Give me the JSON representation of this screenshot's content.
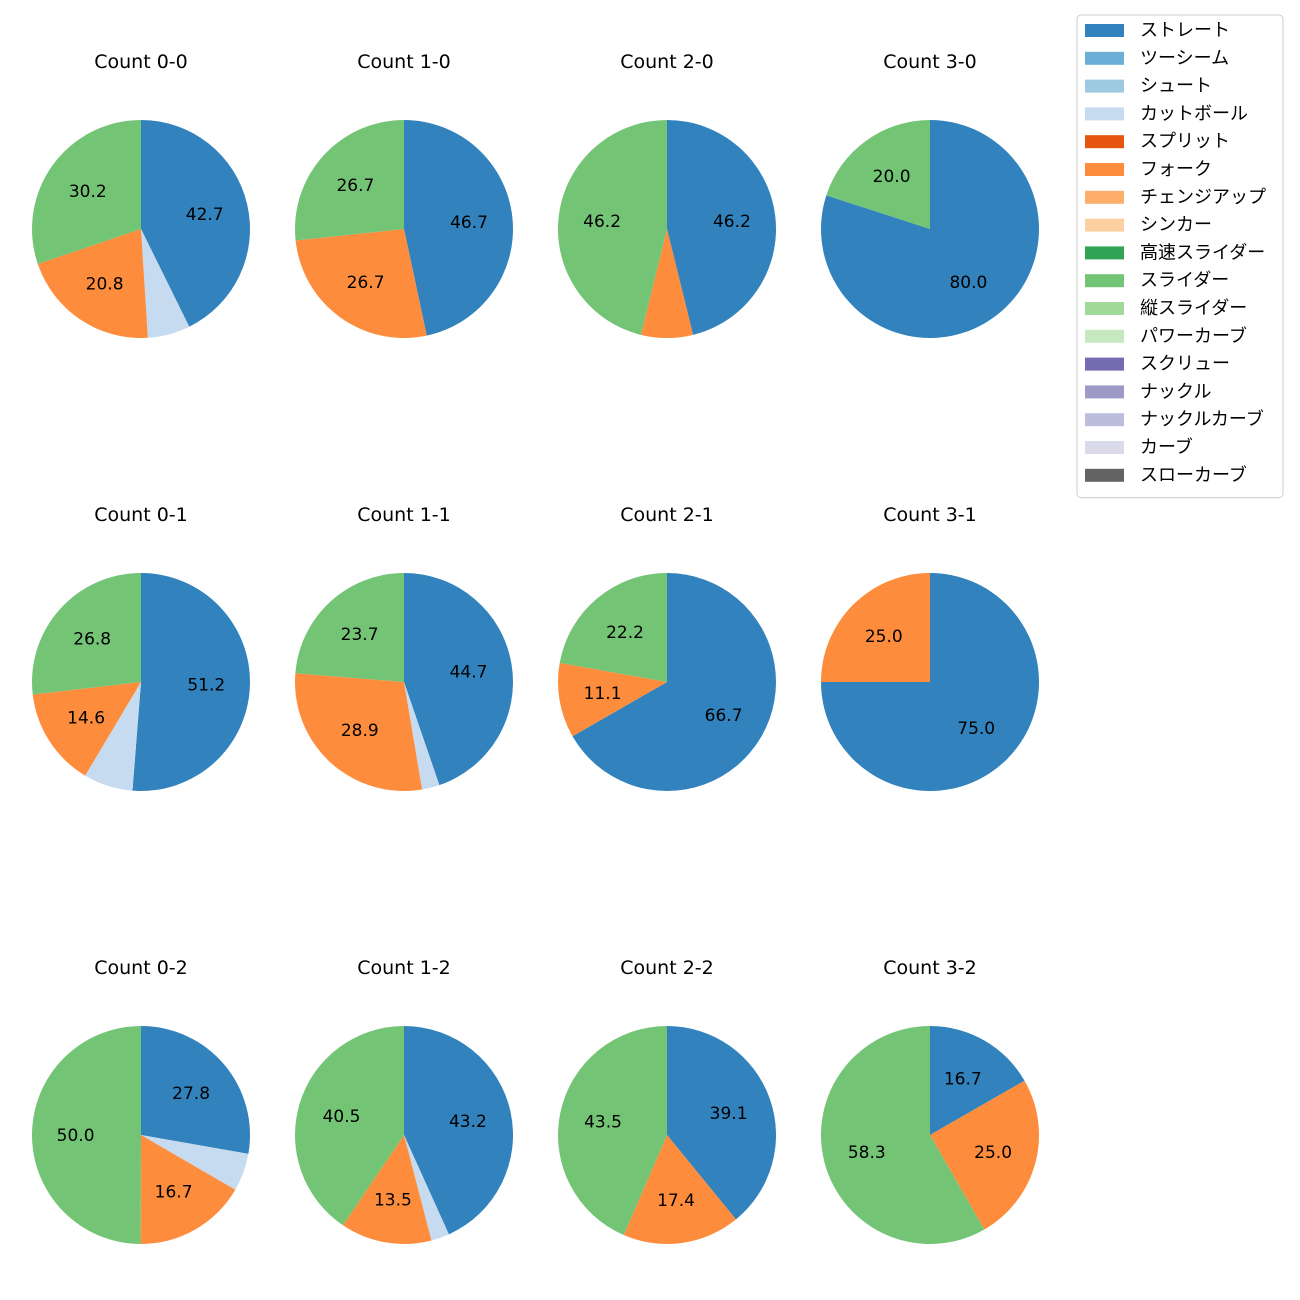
{
  "chart_data": {
    "type": "pie",
    "legend_position": "top-right",
    "pitch_types": [
      {
        "name": "ストレート",
        "color": "#3182bd"
      },
      {
        "name": "ツーシーム",
        "color": "#6baed6"
      },
      {
        "name": "シュート",
        "color": "#9ecae1"
      },
      {
        "name": "カットボール",
        "color": "#c6dbef"
      },
      {
        "name": "スプリット",
        "color": "#e6550d"
      },
      {
        "name": "フォーク",
        "color": "#fd8d3c"
      },
      {
        "name": "チェンジアップ",
        "color": "#fdae6b"
      },
      {
        "name": "シンカー",
        "color": "#fdd0a2"
      },
      {
        "name": "高速スライダー",
        "color": "#31a354"
      },
      {
        "name": "スライダー",
        "color": "#74c476"
      },
      {
        "name": "縦スライダー",
        "color": "#a1d99b"
      },
      {
        "name": "パワーカーブ",
        "color": "#c7e9c0"
      },
      {
        "name": "スクリュー",
        "color": "#756bb1"
      },
      {
        "name": "ナックル",
        "color": "#9e9ac8"
      },
      {
        "name": "ナックルカーブ",
        "color": "#bcbddc"
      },
      {
        "name": "カーブ",
        "color": "#dadaeb"
      },
      {
        "name": "スローカーブ",
        "color": "#636363"
      }
    ],
    "charts": [
      {
        "title": "Count 0-0",
        "slices": [
          {
            "pitch": "ストレート",
            "value": 42.7,
            "label": "42.7"
          },
          {
            "pitch": "カットボール",
            "value": 6.3,
            "label": ""
          },
          {
            "pitch": "フォーク",
            "value": 20.8,
            "label": "20.8"
          },
          {
            "pitch": "スライダー",
            "value": 30.2,
            "label": "30.2"
          }
        ]
      },
      {
        "title": "Count 1-0",
        "slices": [
          {
            "pitch": "ストレート",
            "value": 46.7,
            "label": "46.7"
          },
          {
            "pitch": "フォーク",
            "value": 26.7,
            "label": "26.7"
          },
          {
            "pitch": "スライダー",
            "value": 26.7,
            "label": "26.7"
          }
        ]
      },
      {
        "title": "Count 2-0",
        "slices": [
          {
            "pitch": "ストレート",
            "value": 46.2,
            "label": "46.2"
          },
          {
            "pitch": "フォーク",
            "value": 7.7,
            "label": ""
          },
          {
            "pitch": "スライダー",
            "value": 46.2,
            "label": "46.2"
          }
        ]
      },
      {
        "title": "Count 3-0",
        "slices": [
          {
            "pitch": "ストレート",
            "value": 80.0,
            "label": "80.0"
          },
          {
            "pitch": "スライダー",
            "value": 20.0,
            "label": "20.0"
          }
        ]
      },
      {
        "title": "Count 0-1",
        "slices": [
          {
            "pitch": "ストレート",
            "value": 51.2,
            "label": "51.2"
          },
          {
            "pitch": "カットボール",
            "value": 7.3,
            "label": ""
          },
          {
            "pitch": "フォーク",
            "value": 14.6,
            "label": "14.6"
          },
          {
            "pitch": "スライダー",
            "value": 26.8,
            "label": "26.8"
          }
        ]
      },
      {
        "title": "Count 1-1",
        "slices": [
          {
            "pitch": "ストレート",
            "value": 44.7,
            "label": "44.7"
          },
          {
            "pitch": "カットボール",
            "value": 2.6,
            "label": ""
          },
          {
            "pitch": "フォーク",
            "value": 28.9,
            "label": "28.9"
          },
          {
            "pitch": "スライダー",
            "value": 23.7,
            "label": "23.7"
          }
        ]
      },
      {
        "title": "Count 2-1",
        "slices": [
          {
            "pitch": "ストレート",
            "value": 66.7,
            "label": "66.7"
          },
          {
            "pitch": "フォーク",
            "value": 11.1,
            "label": "11.1"
          },
          {
            "pitch": "スライダー",
            "value": 22.2,
            "label": "22.2"
          }
        ]
      },
      {
        "title": "Count 3-1",
        "slices": [
          {
            "pitch": "ストレート",
            "value": 75.0,
            "label": "75.0"
          },
          {
            "pitch": "フォーク",
            "value": 25.0,
            "label": "25.0"
          }
        ]
      },
      {
        "title": "Count 0-2",
        "slices": [
          {
            "pitch": "ストレート",
            "value": 27.8,
            "label": "27.8"
          },
          {
            "pitch": "カットボール",
            "value": 5.6,
            "label": ""
          },
          {
            "pitch": "フォーク",
            "value": 16.7,
            "label": "16.7"
          },
          {
            "pitch": "スライダー",
            "value": 50.0,
            "label": "50.0"
          }
        ]
      },
      {
        "title": "Count 1-2",
        "slices": [
          {
            "pitch": "ストレート",
            "value": 43.2,
            "label": "43.2"
          },
          {
            "pitch": "カットボール",
            "value": 2.7,
            "label": ""
          },
          {
            "pitch": "フォーク",
            "value": 13.5,
            "label": "13.5"
          },
          {
            "pitch": "スライダー",
            "value": 40.5,
            "label": "40.5"
          }
        ]
      },
      {
        "title": "Count 2-2",
        "slices": [
          {
            "pitch": "ストレート",
            "value": 39.1,
            "label": "39.1"
          },
          {
            "pitch": "フォーク",
            "value": 17.4,
            "label": "17.4"
          },
          {
            "pitch": "スライダー",
            "value": 43.5,
            "label": "43.5"
          }
        ]
      },
      {
        "title": "Count 3-2",
        "slices": [
          {
            "pitch": "ストレート",
            "value": 16.7,
            "label": "16.7"
          },
          {
            "pitch": "フォーク",
            "value": 25.0,
            "label": "25.0"
          },
          {
            "pitch": "スライダー",
            "value": 58.3,
            "label": "58.3"
          }
        ]
      }
    ]
  }
}
